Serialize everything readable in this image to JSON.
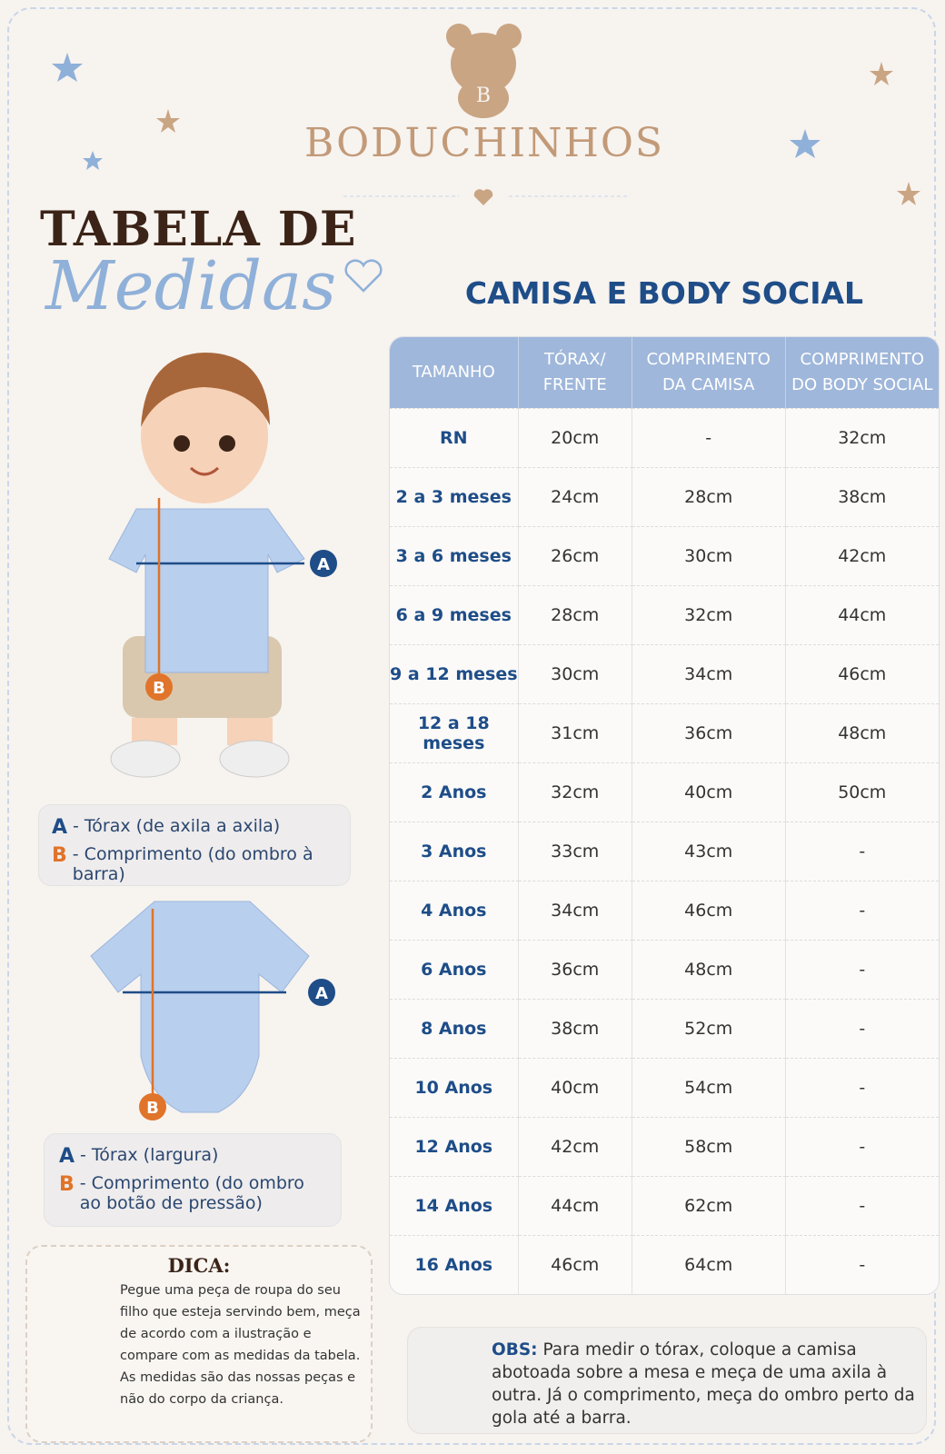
{
  "header": {
    "brand": "BODUCHINHOS",
    "logo_letter": "B",
    "title_line1": "TABELA DE",
    "title_line2": "Medidas"
  },
  "table": {
    "title": "CAMISA E BODY SOCIAL",
    "columns": [
      "TAMANHO",
      "TÓRAX/ FRENTE",
      "COMPRIMENTO DA CAMISA",
      "COMPRIMENTO DO BODY SOCIAL"
    ],
    "rows": [
      [
        "RN",
        "20cm",
        "-",
        "32cm"
      ],
      [
        "2 a 3 meses",
        "24cm",
        "28cm",
        "38cm"
      ],
      [
        "3 a 6 meses",
        "26cm",
        "30cm",
        "42cm"
      ],
      [
        "6 a 9 meses",
        "28cm",
        "32cm",
        "44cm"
      ],
      [
        "9 a 12 meses",
        "30cm",
        "34cm",
        "46cm"
      ],
      [
        "12 a 18 meses",
        "31cm",
        "36cm",
        "48cm"
      ],
      [
        "2 Anos",
        "32cm",
        "40cm",
        "50cm"
      ],
      [
        "3 Anos",
        "33cm",
        "43cm",
        "-"
      ],
      [
        "4 Anos",
        "34cm",
        "46cm",
        "-"
      ],
      [
        "6 Anos",
        "36cm",
        "48cm",
        "-"
      ],
      [
        "8 Anos",
        "38cm",
        "52cm",
        "-"
      ],
      [
        "10 Anos",
        "40cm",
        "54cm",
        "-"
      ],
      [
        "12 Anos",
        "42cm",
        "58cm",
        "-"
      ],
      [
        "14 Anos",
        "44cm",
        "62cm",
        "-"
      ],
      [
        "16 Anos",
        "46cm",
        "64cm",
        "-"
      ]
    ]
  },
  "legend_shirt": [
    {
      "letter": "A",
      "text": "- Tórax (de axila a axila)"
    },
    {
      "letter": "B",
      "text": "- Comprimento (do ombro à barra)"
    }
  ],
  "legend_body": [
    {
      "letter": "A",
      "text": "- Tórax (largura)"
    },
    {
      "letter": "B",
      "text": "- Comprimento (do ombro ao botão de pressão)"
    }
  ],
  "tip": {
    "title": "DICA:",
    "text": "Pegue uma peça de roupa do seu filho que esteja servindo bem, meça de acordo com a ilustração e compare com as medidas da tabela. As medidas são das nossas peças e não do corpo da criança."
  },
  "note": {
    "label": "OBS:",
    "text": "Para medir o tórax, coloque a camisa abotoada sobre a mesa e meça de uma axila à outra. Já o comprimento, meça do ombro perto da gola até a barra."
  }
}
